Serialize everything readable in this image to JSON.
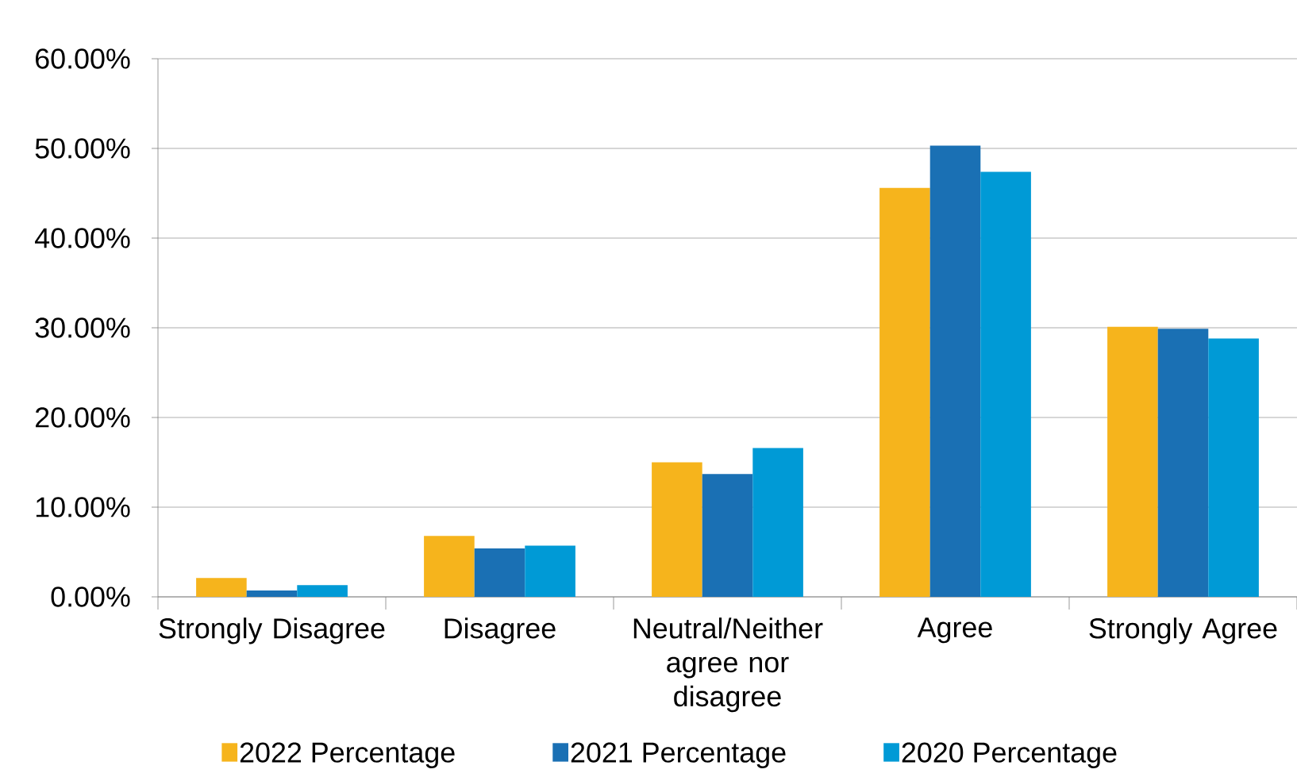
{
  "chart_data": {
    "type": "bar",
    "categories": [
      "Strongly Disagree",
      "Disagree",
      "Neutral/Neither agree nor disagree",
      "Agree",
      "Strongly Agree"
    ],
    "series": [
      {
        "name": "2022 Percentage",
        "color": "#f6b41c",
        "values": [
          2.1,
          6.8,
          15.0,
          45.6,
          30.1
        ]
      },
      {
        "name": "2021 Percentage",
        "color": "#1a70b4",
        "values": [
          0.7,
          5.4,
          13.7,
          50.3,
          29.9
        ]
      },
      {
        "name": "2020 Percentage",
        "color": "#009ad6",
        "values": [
          1.3,
          5.7,
          16.6,
          47.4,
          28.8
        ]
      }
    ],
    "ylim": [
      0,
      60
    ],
    "yticks": [
      {
        "value": 0,
        "label": "0.00%"
      },
      {
        "value": 10,
        "label": "10.00%"
      },
      {
        "value": 20,
        "label": "20.00%"
      },
      {
        "value": 30,
        "label": "30.00%"
      },
      {
        "value": 40,
        "label": "40.00%"
      },
      {
        "value": 50,
        "label": "50.00%"
      },
      {
        "value": 60,
        "label": "60.00%"
      }
    ],
    "grid": "y",
    "legend": "bottom"
  }
}
